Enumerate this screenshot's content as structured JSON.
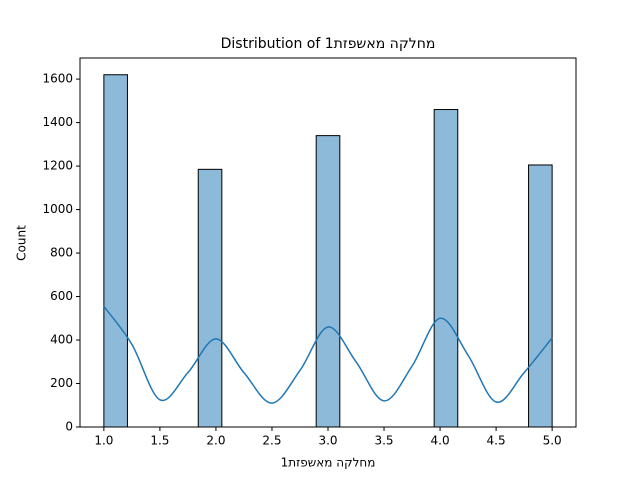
{
  "chart_data": {
    "type": "histogram",
    "title": "Distribution of מחלקה מאשפזת1",
    "xlabel": "מחלקה מאשפזת1",
    "ylabel": "Count",
    "bins": [
      1.0,
      1.2105,
      1.4211,
      1.6316,
      1.8421,
      2.0526,
      2.2632,
      2.4737,
      2.6842,
      2.8947,
      3.1053,
      3.3158,
      3.5263,
      3.7368,
      3.9474,
      4.1579,
      4.3684,
      4.5789,
      4.7895,
      5.0
    ],
    "counts": [
      1620,
      0,
      0,
      0,
      1185,
      0,
      0,
      0,
      0,
      1340,
      0,
      0,
      0,
      0,
      1460,
      0,
      0,
      0,
      1205
    ],
    "color": "#8ebad9",
    "edgecolor": "#000000",
    "kde": {
      "color": "#1f77b4",
      "x": [
        1.0,
        1.25,
        1.5,
        1.75,
        2.0,
        2.25,
        2.5,
        2.75,
        3.0,
        3.25,
        3.5,
        3.75,
        4.0,
        4.25,
        4.5,
        4.75,
        5.0
      ],
      "y": [
        555,
        380,
        125,
        250,
        405,
        250,
        110,
        260,
        460,
        300,
        120,
        280,
        500,
        330,
        115,
        250,
        410
      ]
    },
    "xlim": [
      0.787,
      5.213
    ],
    "ylim": [
      0,
      1697
    ],
    "xticks": [
      {
        "value": 1.0,
        "label": "1.0"
      },
      {
        "value": 1.5,
        "label": "1.5"
      },
      {
        "value": 2.0,
        "label": "2.0"
      },
      {
        "value": 2.5,
        "label": "2.5"
      },
      {
        "value": 3.0,
        "label": "3.0"
      },
      {
        "value": 3.5,
        "label": "3.5"
      },
      {
        "value": 4.0,
        "label": "4.0"
      },
      {
        "value": 4.5,
        "label": "4.5"
      },
      {
        "value": 5.0,
        "label": "5.0"
      }
    ],
    "yticks": [
      0,
      200,
      400,
      600,
      800,
      1000,
      1200,
      1400,
      1600
    ]
  }
}
